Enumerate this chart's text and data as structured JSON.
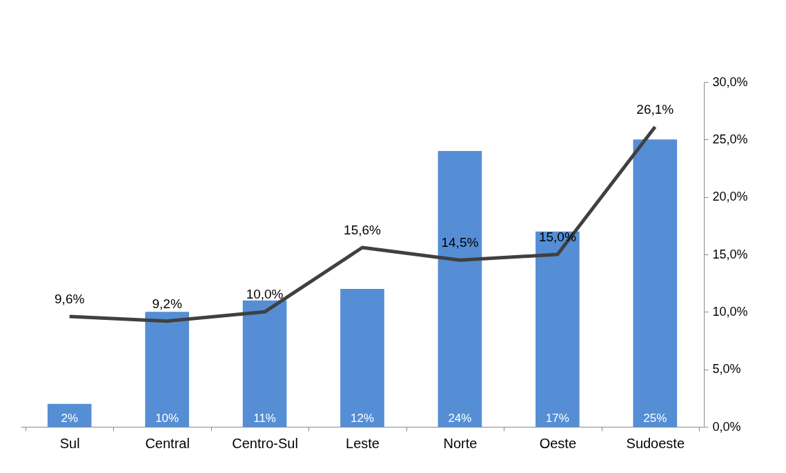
{
  "chart_data": {
    "type": "bar",
    "categories": [
      "Sul",
      "Central",
      "Centro-Sul",
      "Leste",
      "Norte",
      "Oeste",
      "Sudoeste"
    ],
    "series": [
      {
        "color": "#558ed5",
        "values": [
          2,
          10,
          11,
          12,
          24,
          17,
          25
        ],
        "value_labels": [
          "2%",
          "10%",
          "11%",
          "12%",
          "24%",
          "17%",
          "25%"
        ]
      },
      {
        "type": "line",
        "color": "#404040",
        "values": [
          9.6,
          9.2,
          10.0,
          15.6,
          14.5,
          15.0,
          26.1
        ],
        "value_labels": [
          "9,6%",
          "9,2%",
          "10,0%",
          "15,6%",
          "14,5%",
          "15,0%",
          "26,1%"
        ]
      }
    ],
    "ylim": [
      0,
      30
    ],
    "yticks": [
      {
        "value": 0,
        "label": "0,0%"
      },
      {
        "value": 5,
        "label": "5,0%"
      },
      {
        "value": 10,
        "label": "10,0%"
      },
      {
        "value": 15,
        "label": "15,0%"
      },
      {
        "value": 20,
        "label": "20,0%"
      },
      {
        "value": 25,
        "label": "25,0%"
      },
      {
        "value": 30,
        "label": "30,0%"
      }
    ],
    "grid": false
  }
}
